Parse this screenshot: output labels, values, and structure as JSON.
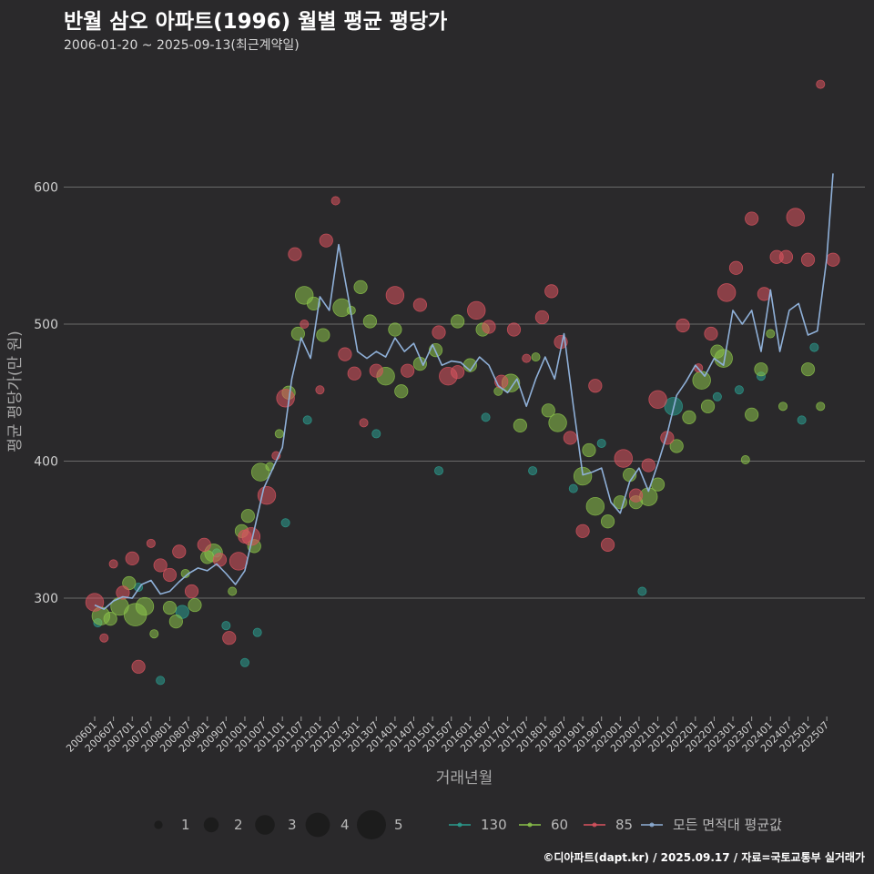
{
  "header": {
    "title": "반월 삼오 아파트(1996) 월별 평균 평당가",
    "subtitle": "2006-01-20 ~ 2025-09-13(최근계약일)"
  },
  "footer": {
    "credit": "©디아파트(dapt.kr) / 2025.09.17 / 자료=국토교통부 실거래가"
  },
  "chart_data": {
    "type": "scatter",
    "xlabel": "거래년월",
    "ylabel": "평균 평당가(만 원)",
    "ylim": [
      215,
      690
    ],
    "yticks": [
      300,
      400,
      500,
      600
    ],
    "x_range": [
      "2006-01",
      "2025-09"
    ],
    "x_ticks": [
      "200601",
      "200607",
      "200701",
      "200707",
      "200801",
      "200807",
      "200901",
      "200907",
      "201001",
      "201007",
      "201101",
      "201107",
      "201201",
      "201207",
      "201301",
      "201307",
      "201401",
      "201407",
      "201501",
      "201507",
      "201601",
      "201607",
      "201701",
      "201707",
      "201801",
      "201807",
      "201901",
      "201907",
      "202001",
      "202007",
      "202101",
      "202107",
      "202201",
      "202207",
      "202301",
      "202307",
      "202401",
      "202407",
      "202501",
      "202507"
    ],
    "size_legend": [
      "1",
      "2",
      "3",
      "4",
      "5"
    ],
    "colors": {
      "area_130": "#2a9d8f",
      "area_60": "#8bc34a",
      "area_85": "#d9535f",
      "average": "#8fb0d8",
      "grid": "#6a6a6a"
    },
    "series": [
      {
        "name": "130",
        "points": [
          [
            "2006-02",
            282,
            1
          ],
          [
            "2007-03",
            308,
            1
          ],
          [
            "2007-10",
            240,
            1
          ],
          [
            "2008-05",
            290,
            2
          ],
          [
            "2009-04",
            333,
            1
          ],
          [
            "2009-07",
            280,
            1
          ],
          [
            "2010-01",
            253,
            1
          ],
          [
            "2010-05",
            275,
            1
          ],
          [
            "2011-02",
            355,
            1
          ],
          [
            "2011-09",
            430,
            1
          ],
          [
            "2013-07",
            420,
            1
          ],
          [
            "2015-03",
            393,
            1
          ],
          [
            "2016-06",
            432,
            1
          ],
          [
            "2017-09",
            393,
            1
          ],
          [
            "2018-10",
            380,
            1
          ],
          [
            "2019-07",
            413,
            1
          ],
          [
            "2020-08",
            305,
            1
          ],
          [
            "2021-06",
            440,
            3
          ],
          [
            "2022-08",
            447,
            1
          ],
          [
            "2023-03",
            452,
            1
          ],
          [
            "2023-10",
            462,
            1
          ],
          [
            "2024-11",
            430,
            1
          ],
          [
            "2025-03",
            483,
            1
          ]
        ]
      },
      {
        "name": "60",
        "points": [
          [
            "2006-03",
            287,
            3
          ],
          [
            "2006-06",
            285,
            2
          ],
          [
            "2006-09",
            294,
            3
          ],
          [
            "2006-12",
            311,
            2
          ],
          [
            "2007-02",
            288,
            4
          ],
          [
            "2007-05",
            294,
            3
          ],
          [
            "2007-08",
            274,
            1
          ],
          [
            "2008-01",
            293,
            2
          ],
          [
            "2008-03",
            283,
            2
          ],
          [
            "2008-06",
            318,
            1
          ],
          [
            "2008-09",
            295,
            2
          ],
          [
            "2009-01",
            330,
            2
          ],
          [
            "2009-03",
            333,
            3
          ],
          [
            "2009-09",
            305,
            1
          ],
          [
            "2009-12",
            349,
            2
          ],
          [
            "2010-02",
            360,
            2
          ],
          [
            "2010-04",
            338,
            2
          ],
          [
            "2010-06",
            392,
            3
          ],
          [
            "2010-09",
            396,
            1
          ],
          [
            "2010-12",
            420,
            1
          ],
          [
            "2011-03",
            450,
            2
          ],
          [
            "2011-06",
            493,
            2
          ],
          [
            "2011-08",
            521,
            3
          ],
          [
            "2011-11",
            515,
            2
          ],
          [
            "2012-02",
            492,
            2
          ],
          [
            "2012-08",
            512,
            3
          ],
          [
            "2012-11",
            510,
            1
          ],
          [
            "2013-02",
            527,
            2
          ],
          [
            "2013-05",
            502,
            2
          ],
          [
            "2013-10",
            462,
            3
          ],
          [
            "2014-01",
            496,
            2
          ],
          [
            "2014-03",
            451,
            2
          ],
          [
            "2014-09",
            471,
            2
          ],
          [
            "2015-02",
            481,
            2
          ],
          [
            "2015-09",
            502,
            2
          ],
          [
            "2016-01",
            470,
            2
          ],
          [
            "2016-05",
            496,
            2
          ],
          [
            "2016-10",
            451,
            1
          ],
          [
            "2017-02",
            457,
            3
          ],
          [
            "2017-05",
            426,
            2
          ],
          [
            "2017-10",
            476,
            1
          ],
          [
            "2018-02",
            437,
            2
          ],
          [
            "2018-05",
            428,
            3
          ],
          [
            "2019-01",
            389,
            3
          ],
          [
            "2019-03",
            408,
            2
          ],
          [
            "2019-05",
            367,
            3
          ],
          [
            "2019-09",
            356,
            2
          ],
          [
            "2020-01",
            370,
            2
          ],
          [
            "2020-04",
            390,
            2
          ],
          [
            "2020-06",
            370,
            2
          ],
          [
            "2020-10",
            374,
            3
          ],
          [
            "2021-01",
            383,
            2
          ],
          [
            "2021-07",
            411,
            2
          ],
          [
            "2021-11",
            432,
            2
          ],
          [
            "2022-03",
            459,
            3
          ],
          [
            "2022-05",
            440,
            2
          ],
          [
            "2022-08",
            480,
            2
          ],
          [
            "2022-10",
            475,
            3
          ],
          [
            "2023-05",
            401,
            1
          ],
          [
            "2023-07",
            434,
            2
          ],
          [
            "2023-10",
            467,
            2
          ],
          [
            "2024-01",
            493,
            1
          ],
          [
            "2024-05",
            440,
            1
          ],
          [
            "2025-01",
            467,
            2
          ],
          [
            "2025-05",
            440,
            1
          ]
        ]
      },
      {
        "name": "85",
        "points": [
          [
            "2006-01",
            297,
            3
          ],
          [
            "2006-04",
            271,
            1
          ],
          [
            "2006-07",
            325,
            1
          ],
          [
            "2006-10",
            304,
            2
          ],
          [
            "2007-01",
            329,
            2
          ],
          [
            "2007-03",
            250,
            2
          ],
          [
            "2007-07",
            340,
            1
          ],
          [
            "2007-10",
            324,
            2
          ],
          [
            "2008-01",
            317,
            2
          ],
          [
            "2008-04",
            334,
            2
          ],
          [
            "2008-08",
            305,
            2
          ],
          [
            "2008-12",
            339,
            2
          ],
          [
            "2009-05",
            328,
            2
          ],
          [
            "2009-08",
            271,
            2
          ],
          [
            "2009-11",
            327,
            3
          ],
          [
            "2010-01",
            345,
            2
          ],
          [
            "2010-03",
            345,
            3
          ],
          [
            "2010-08",
            375,
            3
          ],
          [
            "2010-11",
            404,
            1
          ],
          [
            "2011-02",
            446,
            3
          ],
          [
            "2011-05",
            551,
            2
          ],
          [
            "2011-08",
            500,
            1
          ],
          [
            "2012-01",
            452,
            1
          ],
          [
            "2012-03",
            561,
            2
          ],
          [
            "2012-06",
            590,
            1
          ],
          [
            "2012-09",
            478,
            2
          ],
          [
            "2012-12",
            464,
            2
          ],
          [
            "2013-03",
            428,
            1
          ],
          [
            "2013-07",
            466,
            2
          ],
          [
            "2014-01",
            521,
            3
          ],
          [
            "2014-05",
            466,
            2
          ],
          [
            "2014-09",
            514,
            2
          ],
          [
            "2015-03",
            494,
            2
          ],
          [
            "2015-06",
            462,
            3
          ],
          [
            "2015-09",
            465,
            2
          ],
          [
            "2016-03",
            510,
            3
          ],
          [
            "2016-07",
            498,
            2
          ],
          [
            "2016-11",
            458,
            2
          ],
          [
            "2017-03",
            496,
            2
          ],
          [
            "2017-07",
            475,
            1
          ],
          [
            "2017-12",
            505,
            2
          ],
          [
            "2018-03",
            524,
            2
          ],
          [
            "2018-06",
            487,
            2
          ],
          [
            "2018-09",
            417,
            2
          ],
          [
            "2019-01",
            349,
            2
          ],
          [
            "2019-05",
            455,
            2
          ],
          [
            "2019-09",
            339,
            2
          ],
          [
            "2020-02",
            402,
            3
          ],
          [
            "2020-06",
            375,
            2
          ],
          [
            "2020-10",
            397,
            2
          ],
          [
            "2021-01",
            445,
            3
          ],
          [
            "2021-04",
            417,
            2
          ],
          [
            "2021-09",
            499,
            2
          ],
          [
            "2022-02",
            468,
            1
          ],
          [
            "2022-06",
            493,
            2
          ],
          [
            "2022-11",
            523,
            3
          ],
          [
            "2023-02",
            541,
            2
          ],
          [
            "2023-07",
            577,
            2
          ],
          [
            "2023-11",
            522,
            2
          ],
          [
            "2024-03",
            549,
            2
          ],
          [
            "2024-06",
            549,
            2
          ],
          [
            "2024-09",
            578,
            3
          ],
          [
            "2025-01",
            547,
            2
          ],
          [
            "2025-05",
            675,
            1
          ],
          [
            "2025-09",
            547,
            2
          ]
        ]
      },
      {
        "name": "모든 면적대 평균값",
        "points": [
          [
            "2006-01",
            295
          ],
          [
            "2006-04",
            292
          ],
          [
            "2006-07",
            298
          ],
          [
            "2006-10",
            301
          ],
          [
            "2007-01",
            300
          ],
          [
            "2007-04",
            310
          ],
          [
            "2007-07",
            313
          ],
          [
            "2007-10",
            303
          ],
          [
            "2008-01",
            305
          ],
          [
            "2008-04",
            312
          ],
          [
            "2008-07",
            318
          ],
          [
            "2008-10",
            322
          ],
          [
            "2009-01",
            320
          ],
          [
            "2009-04",
            325
          ],
          [
            "2009-07",
            318
          ],
          [
            "2009-10",
            310
          ],
          [
            "2010-01",
            320
          ],
          [
            "2010-04",
            350
          ],
          [
            "2010-07",
            380
          ],
          [
            "2010-10",
            395
          ],
          [
            "2011-01",
            410
          ],
          [
            "2011-04",
            460
          ],
          [
            "2011-07",
            490
          ],
          [
            "2011-10",
            475
          ],
          [
            "2012-01",
            520
          ],
          [
            "2012-04",
            510
          ],
          [
            "2012-07",
            558
          ],
          [
            "2012-10",
            520
          ],
          [
            "2013-01",
            480
          ],
          [
            "2013-04",
            475
          ],
          [
            "2013-07",
            480
          ],
          [
            "2013-10",
            476
          ],
          [
            "2014-01",
            490
          ],
          [
            "2014-04",
            480
          ],
          [
            "2014-07",
            486
          ],
          [
            "2014-10",
            470
          ],
          [
            "2015-01",
            485
          ],
          [
            "2015-04",
            470
          ],
          [
            "2015-07",
            473
          ],
          [
            "2015-10",
            472
          ],
          [
            "2016-01",
            466
          ],
          [
            "2016-04",
            476
          ],
          [
            "2016-07",
            470
          ],
          [
            "2016-10",
            455
          ],
          [
            "2017-01",
            450
          ],
          [
            "2017-04",
            460
          ],
          [
            "2017-07",
            440
          ],
          [
            "2017-10",
            460
          ],
          [
            "2018-01",
            476
          ],
          [
            "2018-04",
            460
          ],
          [
            "2018-07",
            493
          ],
          [
            "2018-10",
            440
          ],
          [
            "2019-01",
            390
          ],
          [
            "2019-04",
            392
          ],
          [
            "2019-07",
            395
          ],
          [
            "2019-10",
            370
          ],
          [
            "2020-01",
            362
          ],
          [
            "2020-04",
            385
          ],
          [
            "2020-07",
            395
          ],
          [
            "2020-10",
            378
          ],
          [
            "2021-01",
            398
          ],
          [
            "2021-04",
            420
          ],
          [
            "2021-07",
            448
          ],
          [
            "2021-10",
            458
          ],
          [
            "2022-01",
            470
          ],
          [
            "2022-04",
            462
          ],
          [
            "2022-07",
            475
          ],
          [
            "2022-10",
            470
          ],
          [
            "2023-01",
            510
          ],
          [
            "2023-04",
            500
          ],
          [
            "2023-07",
            510
          ],
          [
            "2023-10",
            480
          ],
          [
            "2024-01",
            525
          ],
          [
            "2024-04",
            480
          ],
          [
            "2024-07",
            510
          ],
          [
            "2024-10",
            515
          ],
          [
            "2025-01",
            492
          ],
          [
            "2025-04",
            495
          ],
          [
            "2025-07",
            548
          ],
          [
            "2025-09",
            610
          ]
        ]
      }
    ]
  }
}
